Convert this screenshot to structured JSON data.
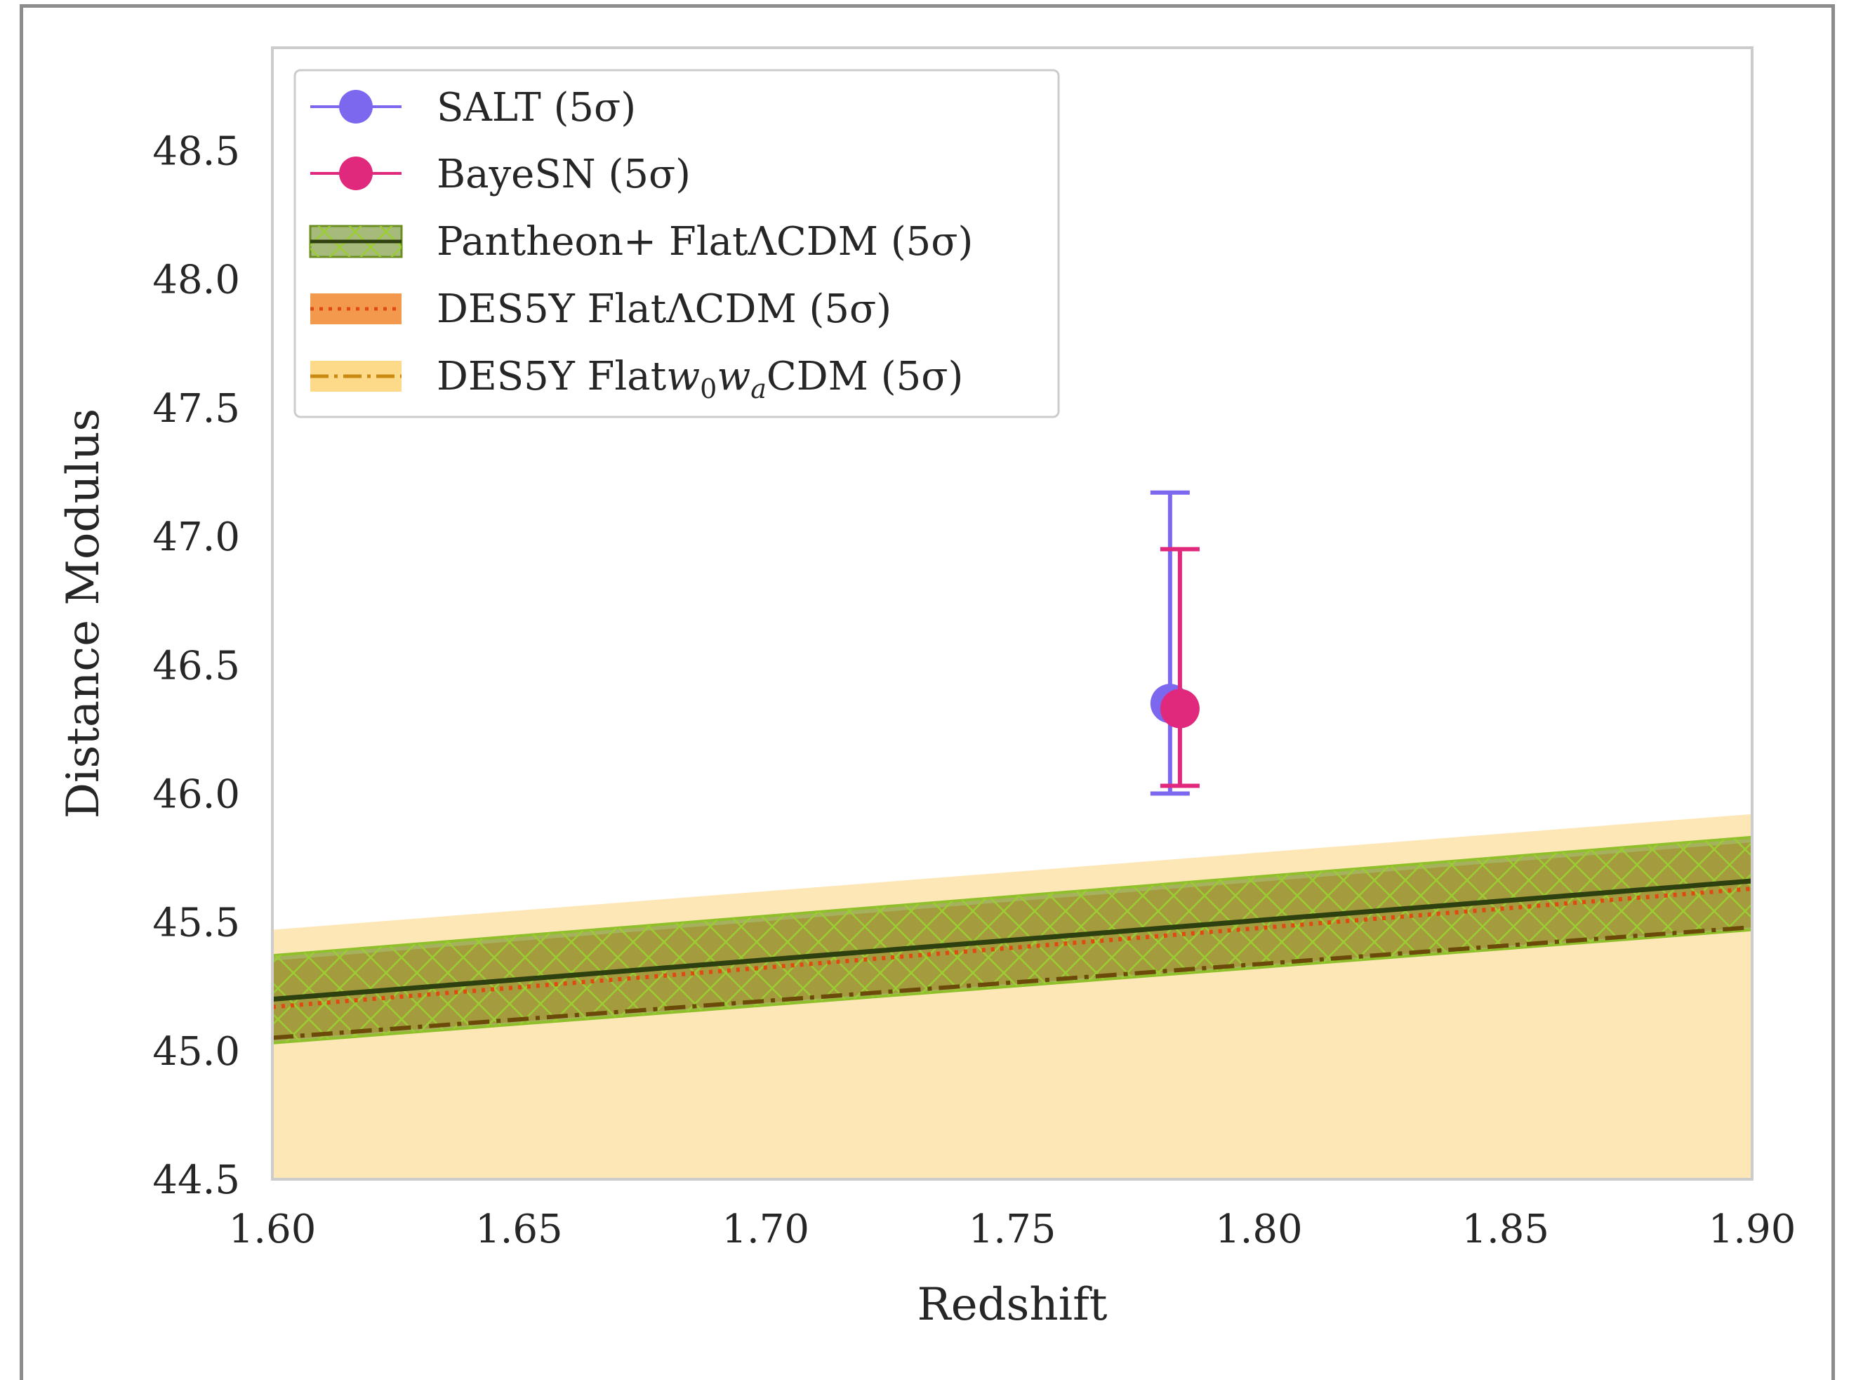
{
  "chart_data": {
    "type": "line",
    "xlabel": "Redshift",
    "ylabel": "Distance Modulus",
    "xlim": [
      1.6,
      1.9
    ],
    "ylim": [
      44.5,
      48.9
    ],
    "x_ticks": [
      "1.60",
      "1.65",
      "1.70",
      "1.75",
      "1.80",
      "1.85",
      "1.90"
    ],
    "y_ticks": [
      "44.5",
      "45.0",
      "45.5",
      "46.0",
      "46.5",
      "47.0",
      "47.5",
      "48.0",
      "48.5"
    ],
    "grid": false,
    "legend_position": "top-left",
    "points": [
      {
        "name": "SALT (5σ)",
        "x": 1.782,
        "y": 46.35,
        "yerr_low": 46.0,
        "yerr_high": 47.17,
        "color": "#7b68ee"
      },
      {
        "name": "BayeSN (5σ)",
        "x": 1.784,
        "y": 46.33,
        "yerr_low": 46.03,
        "yerr_high": 46.95,
        "color": "#e0287d"
      }
    ],
    "bands": [
      {
        "name": "DES5Y Flatw0waCDM (5σ)",
        "legend_label": "DES5Y Flat",
        "legend_w": "w",
        "legend_sub0": "0",
        "legend_wa": "w",
        "legend_suba": "a",
        "legend_tail": "CDM (5σ)",
        "x": [
          1.6,
          1.9
        ],
        "center": [
          45.05,
          45.48
        ],
        "lower": [
          44.5,
          44.5
        ],
        "upper": [
          45.47,
          45.92
        ],
        "fill": "#fdd98a",
        "line_color": "#c98a12",
        "line_style": "dashdot"
      },
      {
        "name": "DES5Y FlatΛCDM (5σ)",
        "x": [
          1.6,
          1.9
        ],
        "center": [
          45.17,
          45.63
        ],
        "lower": [
          45.04,
          45.48
        ],
        "upper": [
          45.35,
          45.81
        ],
        "fill": "#f08020",
        "line_color": "#e04a10",
        "line_style": "dotted"
      },
      {
        "name": "Pantheon+ FlatΛCDM (5σ)",
        "x": [
          1.6,
          1.9
        ],
        "center": [
          45.2,
          45.66
        ],
        "lower": [
          45.03,
          45.47
        ],
        "upper": [
          45.37,
          45.83
        ],
        "fill": "#6b8e23",
        "line_color": "#2e4010",
        "line_style": "solid"
      }
    ]
  }
}
